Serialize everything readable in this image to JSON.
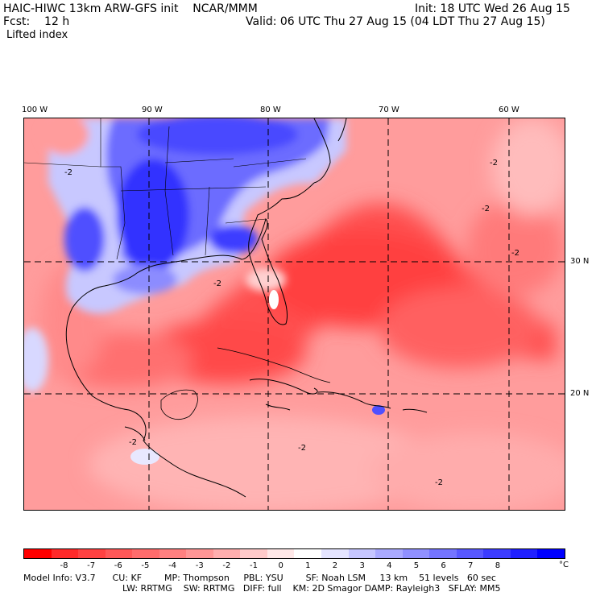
{
  "header": {
    "title_left": "HAIC-HIWC 13km ARW-GFS init    NCAR/MMM",
    "init": "Init: 18 UTC Wed 26 Aug 15",
    "fcst": "Fcst:    12 h",
    "valid": "Valid: 06 UTC Thu 27 Aug 15 (04 LDT Thu 27 Aug 15)",
    "field": "Lifted index"
  },
  "map": {
    "lon_labels": [
      "100 W",
      "90 W",
      "80 W",
      "70 W",
      "60 W"
    ],
    "lat_labels": [
      "30 N",
      "20 N"
    ],
    "contour_label": "-2"
  },
  "colorbar": {
    "ticks": [
      "-8",
      "-7",
      "-6",
      "-5",
      "-4",
      "-3",
      "-2",
      "-1",
      "0",
      "1",
      "2",
      "3",
      "4",
      "5",
      "6",
      "7",
      "8"
    ],
    "unit": "°C",
    "colors": [
      "#ff0000",
      "#ff2a2a",
      "#ff4242",
      "#ff5858",
      "#ff6c6c",
      "#ff8080",
      "#ff9696",
      "#ffaeae",
      "#ffcaca",
      "#ffe8e8",
      "#ffffff",
      "#e4e4ff",
      "#c6c6ff",
      "#aaaaff",
      "#9090ff",
      "#7474ff",
      "#5858ff",
      "#3c3cff",
      "#2020ff",
      "#0000ff"
    ]
  },
  "footer": {
    "line1": "Model Info: V3.7      CU: KF        MP: Thompson     PBL: YSU        SF: Noah LSM     13 km    51 levels   60 sec",
    "line2": "LW: RRTMG    SW: RRTMG   DIFF: full    KM: 2D Smagor DAMP: Rayleigh3   SFLAY: MM5"
  }
}
